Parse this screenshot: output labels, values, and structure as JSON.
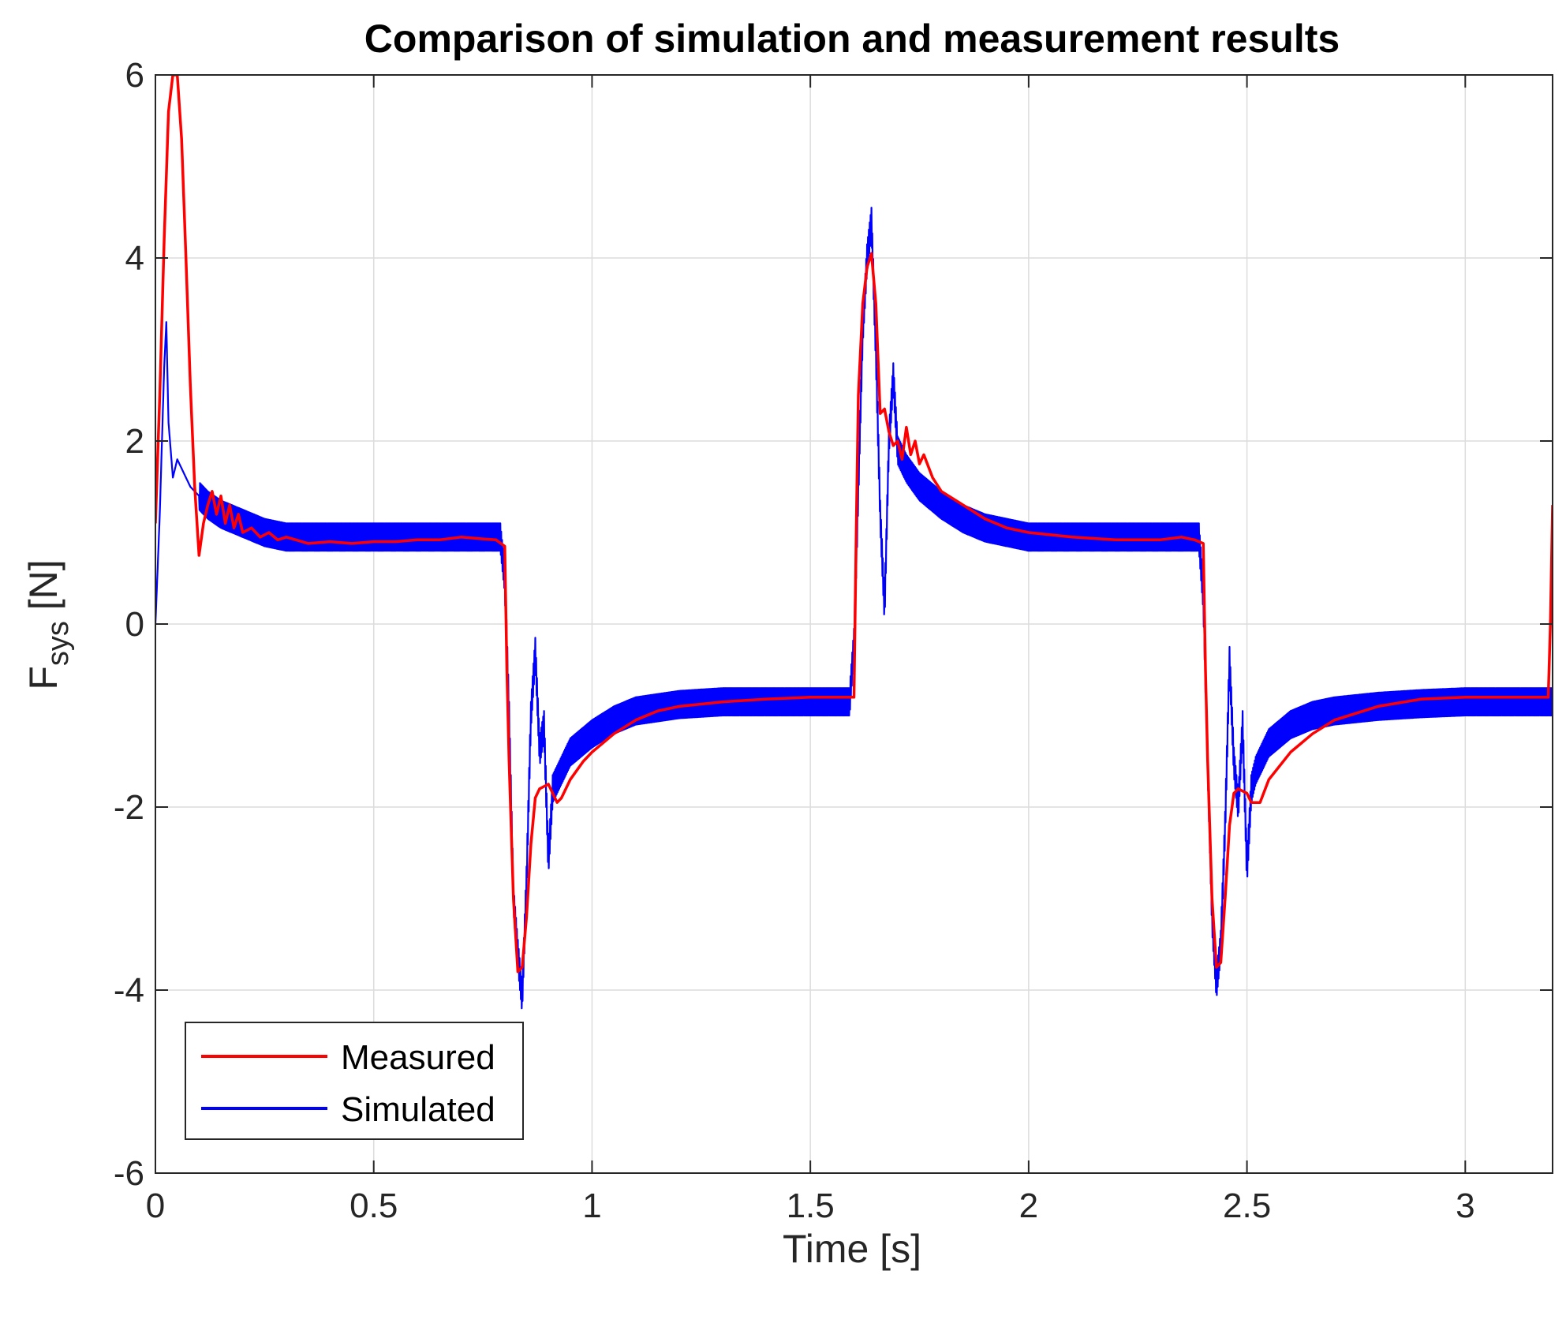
{
  "chart_data": {
    "type": "line",
    "title": "Comparison of simulation and measurement results",
    "xlabel": "Time [s]",
    "ylabel_main": "F",
    "ylabel_sub": "sys",
    "ylabel_unit": " [N]",
    "xlim": [
      0,
      3.2
    ],
    "ylim": [
      -6,
      6
    ],
    "xticks": [
      0,
      0.5,
      1,
      1.5,
      2,
      2.5,
      3
    ],
    "xtick_labels": [
      "0",
      "0.5",
      "1",
      "1.5",
      "2",
      "2.5",
      "3"
    ],
    "yticks": [
      -6,
      -4,
      -2,
      0,
      2,
      4,
      6
    ],
    "ytick_labels": [
      "-6",
      "-4",
      "-2",
      "0",
      "2",
      "4",
      "6"
    ],
    "grid": true,
    "legend_position": "bottom-left",
    "series": [
      {
        "name": "Measured",
        "color": "#ff0000",
        "x": [
          0,
          0.01,
          0.02,
          0.03,
          0.04,
          0.05,
          0.06,
          0.07,
          0.08,
          0.09,
          0.1,
          0.11,
          0.12,
          0.13,
          0.14,
          0.15,
          0.16,
          0.17,
          0.18,
          0.19,
          0.2,
          0.22,
          0.24,
          0.26,
          0.28,
          0.3,
          0.35,
          0.4,
          0.45,
          0.5,
          0.55,
          0.6,
          0.65,
          0.7,
          0.75,
          0.78,
          0.8,
          0.805,
          0.81,
          0.82,
          0.83,
          0.84,
          0.85,
          0.86,
          0.87,
          0.88,
          0.9,
          0.92,
          0.93,
          0.95,
          0.98,
          1.0,
          1.05,
          1.1,
          1.15,
          1.2,
          1.3,
          1.4,
          1.5,
          1.55,
          1.6,
          1.605,
          1.61,
          1.62,
          1.63,
          1.64,
          1.65,
          1.66,
          1.67,
          1.68,
          1.69,
          1.7,
          1.71,
          1.72,
          1.73,
          1.74,
          1.75,
          1.76,
          1.78,
          1.8,
          1.85,
          1.9,
          1.95,
          2.0,
          2.1,
          2.2,
          2.3,
          2.35,
          2.38,
          2.4,
          2.405,
          2.41,
          2.42,
          2.43,
          2.44,
          2.45,
          2.46,
          2.47,
          2.48,
          2.5,
          2.51,
          2.53,
          2.55,
          2.6,
          2.65,
          2.7,
          2.8,
          2.9,
          3.0,
          3.1,
          3.19,
          3.195,
          3.2
        ],
        "y": [
          1.1,
          2.5,
          4.2,
          5.6,
          6.0,
          6.0,
          5.3,
          4.0,
          2.6,
          1.5,
          0.75,
          1.1,
          1.3,
          1.45,
          1.2,
          1.4,
          1.1,
          1.3,
          1.05,
          1.2,
          1.0,
          1.05,
          0.95,
          1.0,
          0.92,
          0.95,
          0.88,
          0.9,
          0.88,
          0.9,
          0.9,
          0.92,
          0.92,
          0.95,
          0.93,
          0.92,
          0.85,
          -0.5,
          -1.5,
          -3.0,
          -3.8,
          -3.75,
          -3.2,
          -2.4,
          -1.9,
          -1.8,
          -1.75,
          -1.95,
          -1.9,
          -1.7,
          -1.5,
          -1.4,
          -1.2,
          -1.05,
          -0.95,
          -0.9,
          -0.85,
          -0.82,
          -0.8,
          -0.8,
          -0.8,
          1.0,
          2.5,
          3.5,
          3.9,
          4.05,
          3.5,
          2.3,
          2.35,
          2.1,
          1.95,
          2.0,
          1.8,
          2.15,
          1.85,
          2.0,
          1.75,
          1.85,
          1.6,
          1.45,
          1.3,
          1.15,
          1.05,
          1.0,
          0.95,
          0.92,
          0.92,
          0.95,
          0.92,
          0.88,
          -0.5,
          -1.5,
          -3.0,
          -3.75,
          -3.7,
          -3.0,
          -2.2,
          -1.85,
          -1.8,
          -1.85,
          -1.95,
          -1.95,
          -1.7,
          -1.4,
          -1.2,
          -1.05,
          -0.9,
          -0.82,
          -0.8,
          -0.8,
          -0.8,
          0.0,
          1.3
        ]
      },
      {
        "name": "Simulated",
        "color": "#0000ff",
        "x": [
          0,
          0.01,
          0.02,
          0.025,
          0.03,
          0.04,
          0.05,
          0.06,
          0.07,
          0.08,
          0.1,
          0.12,
          0.15,
          0.2,
          0.25,
          0.3,
          0.4,
          0.5,
          0.6,
          0.7,
          0.79,
          0.8,
          0.81,
          0.82,
          0.83,
          0.84,
          0.85,
          0.86,
          0.87,
          0.88,
          0.89,
          0.9,
          0.91,
          0.92,
          0.93,
          0.95,
          1.0,
          1.05,
          1.1,
          1.2,
          1.3,
          1.4,
          1.5,
          1.59,
          1.6,
          1.61,
          1.62,
          1.63,
          1.64,
          1.65,
          1.66,
          1.67,
          1.68,
          1.69,
          1.7,
          1.71,
          1.72,
          1.75,
          1.8,
          1.85,
          1.9,
          2.0,
          2.1,
          2.2,
          2.3,
          2.39,
          2.4,
          2.41,
          2.42,
          2.43,
          2.44,
          2.45,
          2.46,
          2.47,
          2.48,
          2.49,
          2.5,
          2.51,
          2.52,
          2.53,
          2.55,
          2.6,
          2.65,
          2.7,
          2.8,
          2.9,
          3.0,
          3.1,
          3.2
        ],
        "y": [
          0.0,
          1.2,
          2.8,
          3.3,
          2.2,
          1.6,
          1.8,
          1.7,
          1.6,
          1.5,
          1.4,
          1.3,
          1.2,
          1.1,
          1.0,
          0.95,
          0.95,
          0.95,
          0.95,
          0.95,
          0.95,
          0.5,
          -1.0,
          -3.0,
          -3.6,
          -4.1,
          -2.8,
          -1.0,
          -0.3,
          -1.4,
          -1.1,
          -2.6,
          -1.8,
          -1.7,
          -1.6,
          -1.4,
          -1.2,
          -1.05,
          -0.95,
          -0.88,
          -0.85,
          -0.85,
          -0.85,
          -0.85,
          -0.2,
          1.5,
          3.2,
          4.0,
          4.4,
          3.0,
          1.2,
          0.15,
          2.0,
          2.7,
          1.9,
          1.8,
          1.7,
          1.5,
          1.3,
          1.15,
          1.05,
          0.95,
          0.95,
          0.95,
          0.95,
          0.95,
          0.3,
          -1.5,
          -3.2,
          -3.95,
          -3.5,
          -2.2,
          -0.4,
          -1.5,
          -2.0,
          -1.1,
          -2.7,
          -1.8,
          -1.6,
          -1.5,
          -1.3,
          -1.1,
          -1.0,
          -0.95,
          -0.9,
          -0.87,
          -0.85,
          -0.85,
          -0.85
        ]
      }
    ],
    "simulated_ripple_amplitude": 0.15
  }
}
